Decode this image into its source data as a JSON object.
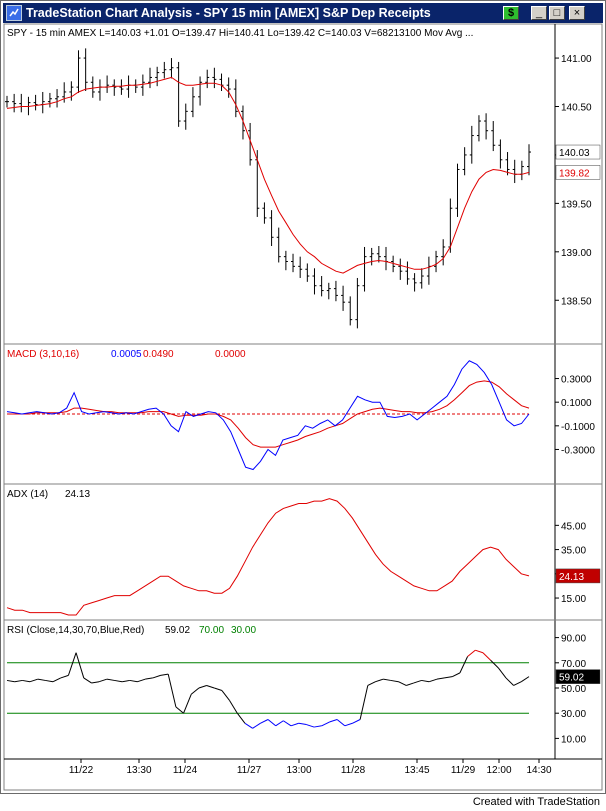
{
  "window": {
    "title": "TradeStation Chart Analysis - SPY  15 min  [AMEX] S&P Dep Receipts",
    "status_btn": "$",
    "minimize": "_",
    "maximize": "□",
    "close": "×"
  },
  "footer": "Created with TradeStation",
  "colors": {
    "price": "#000000",
    "ma": "#e00000",
    "blue": "#0000ff",
    "red": "#e00000",
    "green": "#008000"
  },
  "chart_data": [
    {
      "type": "line",
      "panel": "price",
      "header": "SPY - 15 min   AMEX  L=140.03  +1.01  O=139.47  Hi=140.41  Lo=139.42  C=140.03  V=68213100  Mov Avg ...",
      "ylim": [
        138.1,
        141.3
      ],
      "yticks": [
        "141.00",
        "140.50",
        "140.00",
        "139.50",
        "139.00",
        "138.50"
      ],
      "ytick_values": [
        141.0,
        140.5,
        140.0,
        139.5,
        139.0,
        138.5
      ],
      "last_label": "140.03",
      "ma_label": "139.82",
      "series": [
        {
          "label": "price",
          "values": [
            140.55,
            140.53,
            140.5,
            140.54,
            140.52,
            140.55,
            140.58,
            140.6,
            140.65,
            140.7,
            141.0,
            140.75,
            140.65,
            140.7,
            140.72,
            140.7,
            140.68,
            140.72,
            140.7,
            140.75,
            140.8,
            140.85,
            140.88,
            140.9,
            140.35,
            140.45,
            140.6,
            140.75,
            140.8,
            140.78,
            140.72,
            140.68,
            140.45,
            140.25,
            139.95,
            139.45,
            139.35,
            139.15,
            138.95,
            138.9,
            138.85,
            138.82,
            138.75,
            138.65,
            138.6,
            138.62,
            138.55,
            138.48,
            138.3,
            138.65,
            138.95,
            138.98,
            138.95,
            138.9,
            138.85,
            138.8,
            138.72,
            138.68,
            138.75,
            138.85,
            138.95,
            139.05,
            139.45,
            139.85,
            140.0,
            140.2,
            140.35,
            140.25,
            140.1,
            139.95,
            139.85,
            139.8,
            139.88,
            140.03
          ]
        },
        {
          "label": "ma",
          "values": [
            140.48,
            140.49,
            140.5,
            140.5,
            140.51,
            140.52,
            140.53,
            140.55,
            140.58,
            140.6,
            140.65,
            140.68,
            140.69,
            140.7,
            140.7,
            140.71,
            140.71,
            140.72,
            140.72,
            140.73,
            140.74,
            140.76,
            140.78,
            140.8,
            140.75,
            140.72,
            140.72,
            140.73,
            140.74,
            140.74,
            140.72,
            140.65,
            140.52,
            140.35,
            140.15,
            139.95,
            139.75,
            139.58,
            139.42,
            139.3,
            139.18,
            139.08,
            139.0,
            138.95,
            138.88,
            138.84,
            138.8,
            138.78,
            138.82,
            138.86,
            138.88,
            138.9,
            138.91,
            138.9,
            138.88,
            138.86,
            138.84,
            138.82,
            138.82,
            138.84,
            138.87,
            138.93,
            139.05,
            139.25,
            139.45,
            139.62,
            139.75,
            139.82,
            139.85,
            139.84,
            139.82,
            139.8,
            139.8,
            139.82
          ]
        }
      ]
    },
    {
      "type": "line",
      "panel": "macd",
      "header": "MACD (3,10,16)",
      "values_text": [
        "0.0005",
        "0.0490",
        "0.0000"
      ],
      "ylim": [
        -0.55,
        0.55
      ],
      "yticks": [
        "0.3000",
        "0.1000",
        "-0.1000",
        "-0.3000"
      ],
      "ytick_values": [
        0.3,
        0.1,
        -0.1,
        -0.3
      ],
      "zero_line": 0.0,
      "series": [
        {
          "label": "macd",
          "values": [
            0.02,
            0.01,
            0.0,
            0.01,
            0.02,
            0.01,
            0.0,
            0.01,
            0.05,
            0.18,
            0.02,
            0.0,
            0.01,
            0.02,
            0.01,
            0.0,
            0.01,
            0.0,
            0.02,
            0.04,
            0.05,
            0.0,
            -0.1,
            -0.15,
            0.02,
            -0.02,
            0.0,
            0.02,
            0.01,
            -0.05,
            -0.15,
            -0.3,
            -0.45,
            -0.47,
            -0.4,
            -0.3,
            -0.35,
            -0.22,
            -0.2,
            -0.18,
            -0.1,
            -0.12,
            -0.08,
            -0.05,
            -0.1,
            -0.05,
            0.05,
            0.15,
            0.12,
            0.1,
            0.1,
            -0.02,
            -0.03,
            -0.02,
            0.0,
            -0.05,
            0.0,
            0.05,
            0.1,
            0.15,
            0.25,
            0.38,
            0.45,
            0.42,
            0.35,
            0.25,
            0.1,
            -0.05,
            -0.1,
            -0.08,
            0.0
          ]
        },
        {
          "label": "signal",
          "values": [
            0.0,
            0.0,
            0.0,
            0.0,
            0.01,
            0.01,
            0.01,
            0.01,
            0.02,
            0.05,
            0.05,
            0.04,
            0.03,
            0.02,
            0.02,
            0.01,
            0.01,
            0.01,
            0.01,
            0.02,
            0.02,
            0.02,
            0.0,
            -0.02,
            -0.01,
            -0.01,
            -0.01,
            0.0,
            0.0,
            -0.02,
            -0.05,
            -0.12,
            -0.2,
            -0.26,
            -0.28,
            -0.28,
            -0.28,
            -0.26,
            -0.24,
            -0.22,
            -0.19,
            -0.17,
            -0.15,
            -0.12,
            -0.1,
            -0.08,
            -0.04,
            0.0,
            0.02,
            0.04,
            0.05,
            0.04,
            0.03,
            0.02,
            0.02,
            0.01,
            0.01,
            0.02,
            0.04,
            0.07,
            0.12,
            0.18,
            0.24,
            0.27,
            0.28,
            0.27,
            0.23,
            0.17,
            0.12,
            0.07,
            0.05
          ]
        }
      ]
    },
    {
      "type": "line",
      "panel": "adx",
      "header": "ADX  (14)",
      "values_text": [
        "24.13"
      ],
      "ylim": [
        8,
        60
      ],
      "yticks": [
        "45.00",
        "35.00",
        "25.00",
        "15.00"
      ],
      "ytick_values": [
        45,
        35,
        25,
        15
      ],
      "last_label": "24.13",
      "series": [
        {
          "label": "adx",
          "values": [
            11,
            10,
            10,
            9,
            9,
            9,
            9,
            9,
            8,
            8,
            12,
            13,
            14,
            15,
            16,
            16,
            16,
            18,
            20,
            22,
            24,
            24,
            22,
            20,
            19,
            18,
            18,
            17,
            17,
            19,
            24,
            30,
            36,
            41,
            46,
            50,
            52,
            53,
            54,
            54,
            55,
            55,
            56,
            55,
            52,
            48,
            43,
            38,
            33,
            29,
            26,
            24,
            22,
            20,
            19,
            18,
            18,
            20,
            22,
            26,
            29,
            32,
            35,
            36,
            35,
            31,
            28,
            25,
            24.13
          ]
        }
      ]
    },
    {
      "type": "line",
      "panel": "rsi",
      "header": "RSI  (Close,14,30,70,Blue,Red)",
      "values_text": [
        "59.02",
        "70.00",
        "30.00"
      ],
      "ylim": [
        0,
        100
      ],
      "yticks": [
        "90.00",
        "70.00",
        "50.00",
        "30.00",
        "10.00"
      ],
      "ytick_values": [
        90,
        70,
        50,
        30,
        10
      ],
      "overbought": 70,
      "oversold": 30,
      "last_label": "59.02",
      "series": [
        {
          "label": "rsi",
          "values": [
            56,
            55,
            56,
            55,
            57,
            56,
            55,
            58,
            60,
            78,
            58,
            54,
            55,
            57,
            56,
            55,
            56,
            55,
            57,
            58,
            60,
            61,
            35,
            30,
            45,
            50,
            52,
            50,
            48,
            40,
            30,
            22,
            18,
            22,
            25,
            20,
            24,
            20,
            22,
            21,
            19,
            20,
            23,
            25,
            20,
            22,
            25,
            52,
            55,
            57,
            56,
            55,
            52,
            54,
            56,
            55,
            57,
            58,
            59,
            62,
            75,
            80,
            78,
            72,
            66,
            58,
            52,
            55,
            59.02
          ]
        }
      ]
    }
  ],
  "x_axis": {
    "labels": [
      "11/22",
      "13:30",
      "11/24",
      "11/27",
      "13:00",
      "11/28",
      "13:45",
      "11/29",
      "12:00",
      "14:30"
    ]
  }
}
